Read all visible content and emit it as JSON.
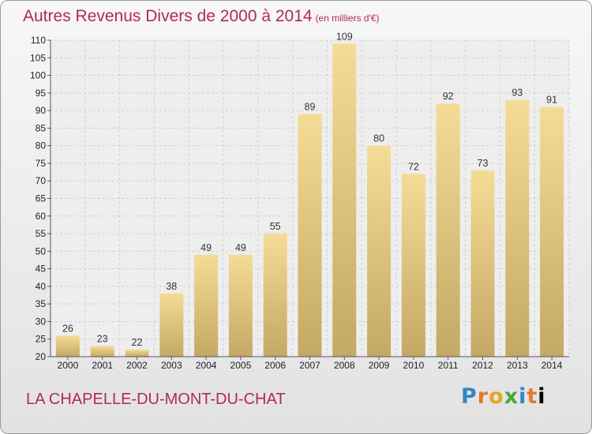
{
  "header": {
    "title": "Autres Revenus Divers de 2000 à 2014",
    "unit": "(en milliers d'€)"
  },
  "footer": {
    "place": "LA CHAPELLE-DU-MONT-DU-CHAT",
    "logo_letters": [
      "P",
      "r",
      "o",
      "x",
      "i",
      "t",
      "i"
    ]
  },
  "colors": {
    "title": "#b22a55",
    "bar_top": "#f5dc96",
    "bar_bottom": "#c4a865",
    "grid": "#cfcfcf"
  },
  "chart_data": {
    "type": "bar",
    "title": "Autres Revenus Divers de 2000 à 2014",
    "xlabel": "",
    "ylabel": "",
    "categories": [
      "2000",
      "2001",
      "2002",
      "2003",
      "2004",
      "2005",
      "2006",
      "2007",
      "2008",
      "2009",
      "2010",
      "2011",
      "2012",
      "2013",
      "2014"
    ],
    "values": [
      26,
      23,
      22,
      38,
      49,
      49,
      55,
      89,
      109,
      80,
      72,
      92,
      73,
      93,
      91
    ],
    "ylim": [
      20,
      110
    ],
    "yticks": [
      20,
      25,
      30,
      35,
      40,
      45,
      50,
      55,
      60,
      65,
      70,
      75,
      80,
      85,
      90,
      95,
      100,
      105,
      110
    ],
    "grid": true
  }
}
